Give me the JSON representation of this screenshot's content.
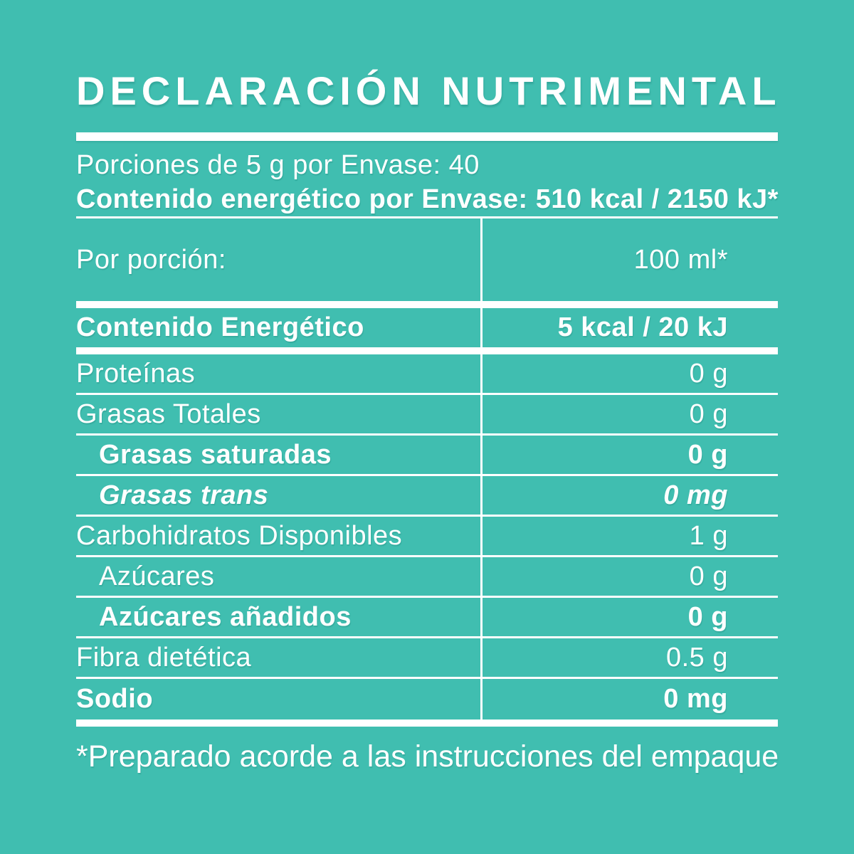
{
  "colors": {
    "background": "#40BEB0",
    "text": "#FFFFFF"
  },
  "header": {
    "title": "DECLARACIÓN NUTRIMENTAL",
    "servings_line": "Porciones de 5 g por Envase: 40",
    "energy_line": "Contenido energético por Envase: 510 kcal / 2150 kJ*"
  },
  "table": {
    "per_serving_row": {
      "label": "Por porción:",
      "value": "100 ml*"
    },
    "rows": [
      {
        "label": "Contenido Energético",
        "value": "5 kcal / 20 kJ",
        "style": "bold",
        "indent": false
      },
      {
        "label": "Proteínas",
        "value": "0 g",
        "style": "regular",
        "indent": false
      },
      {
        "label": "Grasas Totales",
        "value": "0 g",
        "style": "regular",
        "indent": false
      },
      {
        "label": "Grasas saturadas",
        "value": "0 g",
        "style": "bold",
        "indent": true
      },
      {
        "label": "Grasas trans",
        "value": "0 mg",
        "style": "bold-italic",
        "indent": true
      },
      {
        "label": "Carbohidratos Disponibles",
        "value": "1 g",
        "style": "regular",
        "indent": false
      },
      {
        "label": "Azúcares",
        "value": "0 g",
        "style": "regular",
        "indent": true
      },
      {
        "label": "Azúcares añadidos",
        "value": "0 g",
        "style": "bold",
        "indent": true
      },
      {
        "label": "Fibra dietética",
        "value": "0.5 g",
        "style": "regular",
        "indent": false
      },
      {
        "label": "Sodio",
        "value": "0 mg",
        "style": "bold",
        "indent": false
      }
    ]
  },
  "footnote": "*Preparado acorde a las instrucciones del empaque"
}
